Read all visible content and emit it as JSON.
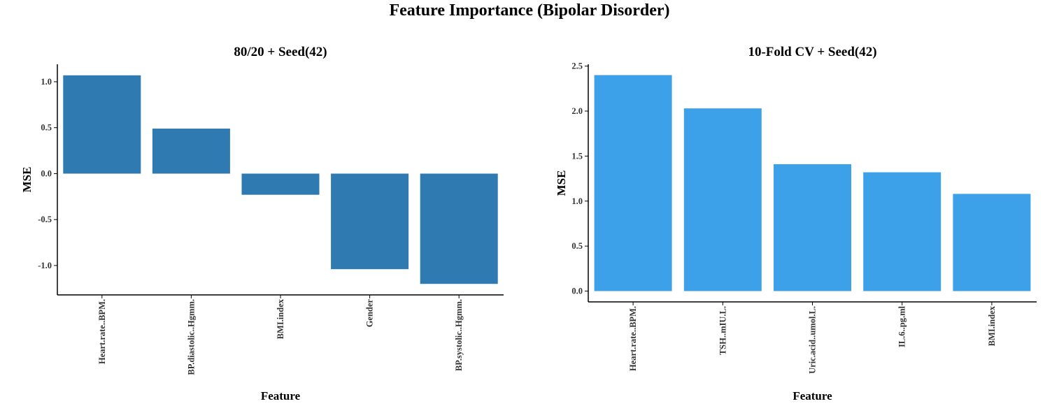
{
  "title": "Feature Importance (Bipolar Disorder)",
  "chart_data": [
    {
      "type": "bar",
      "title": "80/20 + Seed(42)",
      "xlabel": "Feature",
      "ylabel": "MSE",
      "categories": [
        "Heart.rate..BPM.",
        "BP.diastolic..Hgmm.",
        "BMI.index",
        "Gender",
        "BP.systolic..Hgmm."
      ],
      "values": [
        1.07,
        0.49,
        -0.23,
        -1.04,
        -1.2
      ],
      "yticks": [
        -1.0,
        -0.5,
        0.0,
        0.5,
        1.0
      ],
      "ytick_labels": [
        "-1.0",
        "-0.5",
        "0.0",
        "0.5",
        "1.0"
      ],
      "ylim": [
        -1.32,
        1.19
      ],
      "bar_color": "#2E7AB1",
      "grid": false
    },
    {
      "type": "bar",
      "title": "10-Fold CV + Seed(42)",
      "xlabel": "Feature",
      "ylabel": "MSE",
      "categories": [
        "Heart.rate..BPM.",
        "TSH..mIU.L.",
        "Uric.acid..umol.L.",
        "IL.6..pg.ml",
        "BMI.index"
      ],
      "values": [
        2.4,
        2.03,
        1.41,
        1.32,
        1.08
      ],
      "yticks": [
        0.0,
        0.5,
        1.0,
        1.5,
        2.0,
        2.5
      ],
      "ytick_labels": [
        "0.0",
        "0.5",
        "1.0",
        "1.5",
        "2.0",
        "2.5"
      ],
      "ylim": [
        -0.12,
        2.52
      ],
      "bar_color": "#3DA1EA",
      "grid": false
    }
  ]
}
